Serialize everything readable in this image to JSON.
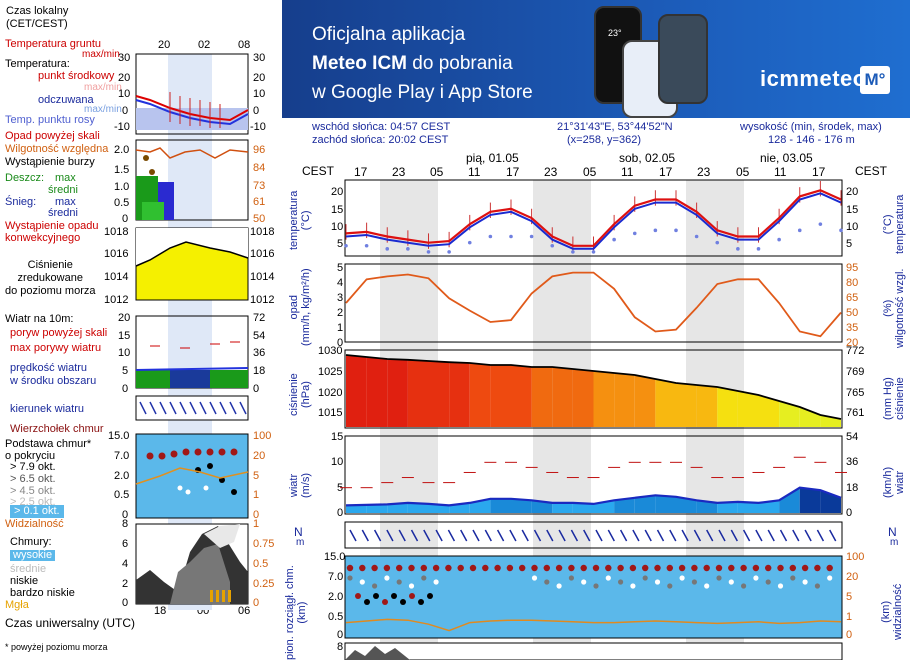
{
  "legend": {
    "time_local_label": "Czas lokalny\n(CET/CEST)",
    "temp_ground": "Temperatura gruntu",
    "temp_ground_sub": "max/min",
    "temperature": "Temperatura:",
    "temp_mid": "punkt środkowy",
    "temp_mid_sub": "max/min",
    "temp_feel": "odczuwana",
    "temp_feel_sub": "max/min",
    "dew_point": "Temp. punktu rosy",
    "precip_above": "Opad powyżej skali",
    "humidity": "Wilgotność względna",
    "storm": "Wystąpienie burzy",
    "rain_label": "Deszcz:",
    "max": "max",
    "mid": "średni",
    "snow_label": "Śnieg:",
    "convective": "Wystąpienie opadu\nkonwekcyjnego",
    "pressure": "Ciśnienie\nzredukowane\ndo poziomu morza",
    "wind10": "Wiatr na 10m:",
    "gust_above": "poryw powyżej skali",
    "gust_max": "max porywy wiatru",
    "wind_speed": "prędkość wiatru\nw środku obszaru",
    "wind_dir": "kierunek wiatru",
    "cloud_top": "Wierzchołek chmur",
    "cloud_base": "Podstawa chmur*\no pokryciu",
    "okt": [
      "> 7.9 okt.",
      "> 6.5 okt.",
      "> 4.5 okt.",
      "> 2.5 okt.",
      "> 0.1 okt."
    ],
    "visibility": "Widzialność",
    "clouds": "Chmury:",
    "cl_high": "wysokie",
    "cl_mid": "średnie",
    "cl_low": "niskie",
    "cl_vlow": "bardzo niskie",
    "fog": "Mgła",
    "utc": "Czas uniwersalny (UTC)",
    "footnote": "* powyżej poziomu morza"
  },
  "legend_axes": {
    "local_ticks": [
      "20",
      "02",
      "08"
    ],
    "utc_ticks": [
      "18",
      "00",
      "06"
    ],
    "temp": [
      "30",
      "20",
      "10",
      "0",
      "-10"
    ],
    "precip": [
      "2.0",
      "1.5",
      "1.0",
      "0.5",
      "0"
    ],
    "hum": [
      "96",
      "84",
      "73",
      "61",
      "50"
    ],
    "press": [
      "1018",
      "1016",
      "1014",
      "1012"
    ],
    "wind_ms": [
      "20",
      "15",
      "10",
      "5",
      "0"
    ],
    "wind_kmh": [
      "72",
      "54",
      "36",
      "18",
      "0"
    ],
    "cloudkm": [
      "15.0",
      "7.0",
      "2.0",
      "0.5",
      "0"
    ],
    "vis": [
      "100",
      "20",
      "5",
      "1",
      "0"
    ],
    "cloud_frac": [
      "8",
      "6",
      "4",
      "2",
      "0"
    ],
    "cloud_right": [
      "1",
      "0.75",
      "0.5",
      "0.25",
      "0"
    ]
  },
  "banner": {
    "line1": "Oficjalna aplikacja",
    "line2a": "Meteo ICM",
    "line2b": " do pobrania",
    "line3": "w Google Play i App Store",
    "logo": "icmmeteo",
    "logo_box": "M°",
    "phone_temp": "23°"
  },
  "header": {
    "sunrise": "wschód słońca: 04:57 CEST",
    "sunset": "zachód słońca: 20:02 CEST",
    "coords": "21°31'43\"E, 53°44'52\"N",
    "grid": "(x=258,  y=362)",
    "altitude_label": "wysokość (min, środek, max)",
    "altitude": "128 - 146 - 176 m"
  },
  "time_axis": {
    "tz": "CEST",
    "hours": [
      "17",
      "23",
      "05",
      "11",
      "17",
      "23",
      "05",
      "11",
      "17",
      "23",
      "05",
      "11",
      "17"
    ],
    "days": [
      "pią, 01.05",
      "sob, 02.05",
      "nie, 03.05"
    ]
  },
  "panels": {
    "temp_left": "temperatura\n(°C)",
    "temp_right": "(°C)\ntemperatura",
    "precip_left": "opad\n(mm/h, kg/m²/h)",
    "precip_right": "(%)\nwilgotność wzgl.",
    "press_left": "ciśnienie\n(hPa)",
    "press_right": "(mm Hg)\nciśnienie",
    "wind_left": "wiatr\n(m/s)",
    "wind_right": "(km/h)\nwiatr",
    "cloud_left": "pion. rozciągł. chm.\n(km)",
    "cloud_right": "(km)\nwidzialność",
    "wind_dir_n": "N",
    "wind_dir_m": "m"
  },
  "axes": {
    "temp": [
      "20",
      "15",
      "10",
      "5"
    ],
    "precip": [
      "5",
      "4",
      "3",
      "2",
      "1",
      "0"
    ],
    "hum": [
      "95",
      "80",
      "65",
      "50",
      "35",
      "20"
    ],
    "press_hpa": [
      "1030",
      "1025",
      "1020",
      "1015"
    ],
    "press_mmhg": [
      "772",
      "769",
      "765",
      "761"
    ],
    "wind_ms": [
      "15",
      "10",
      "5",
      "0"
    ],
    "wind_kmh": [
      "54",
      "36",
      "18",
      "0"
    ],
    "cloud_km": [
      "15.0",
      "7.0",
      "2.0",
      "0.5",
      "0"
    ],
    "vis_km": [
      "100",
      "20",
      "5",
      "1",
      "0"
    ],
    "bottom_tick": "8"
  },
  "chart_data": {
    "type": "line",
    "x": [
      0,
      3,
      6,
      9,
      12,
      15,
      18,
      21,
      24,
      27,
      30,
      33,
      36,
      39,
      42,
      45,
      48,
      51,
      54,
      57,
      60,
      63,
      66,
      69,
      72
    ],
    "series": [
      {
        "values": [
          7,
          7.5,
          6,
          5,
          4,
          4.5,
          10,
          14,
          15,
          12,
          6,
          3,
          3,
          10,
          16,
          18,
          18,
          14,
          8,
          6,
          6,
          12,
          19,
          21,
          18
        ],
        "color": "#dd1111"
      },
      {
        "values": [
          6,
          6.5,
          5,
          4,
          3,
          3.5,
          9,
          13,
          14,
          11,
          5,
          2,
          2,
          9,
          15,
          17,
          17,
          13,
          7,
          5,
          5,
          11,
          18,
          20,
          17
        ],
        "color": "#1a2ad0"
      },
      {
        "values": [
          3,
          3,
          2,
          2,
          1,
          1,
          4,
          6,
          6,
          6,
          3,
          1,
          1,
          5,
          7,
          8,
          8,
          6,
          4,
          2,
          2,
          5,
          8,
          10,
          8
        ],
        "color": "#7080e0"
      },
      {
        "values": [
          60,
          85,
          88,
          90,
          86,
          65,
          52,
          40,
          42,
          70,
          88,
          92,
          92,
          75,
          45,
          30,
          32,
          55,
          80,
          85,
          85,
          60,
          30,
          25,
          50
        ],
        "color": "#e05a1a"
      },
      {
        "values": [
          1030,
          1029.5,
          1029,
          1028.8,
          1028.5,
          1028.2,
          1028,
          1027.5,
          1027.5,
          1027,
          1027,
          1026.5,
          1026,
          1025.5,
          1025,
          1024,
          1023,
          1022.5,
          1022,
          1021,
          1020,
          1018.5,
          1017,
          1015,
          1014
        ],
        "color": "#000000"
      },
      {
        "values": [
          1.5,
          1.6,
          1.7,
          2.0,
          1.8,
          1.5,
          2.0,
          2.8,
          2.8,
          2.5,
          2.0,
          2.0,
          1.8,
          2.5,
          3.0,
          3.5,
          3.2,
          2.5,
          2.0,
          2.2,
          2.0,
          2.5,
          5.0,
          4.5,
          3.0
        ],
        "color": "#1a2ac0"
      },
      {
        "values": [
          5,
          5,
          6,
          7,
          6,
          6,
          8,
          10,
          10,
          9,
          8,
          7,
          7,
          9,
          10,
          10,
          10,
          9,
          7,
          7,
          8,
          9,
          11,
          10,
          8
        ],
        "color": "#c01010"
      }
    ],
    "yticks": [
      "20",
      "15",
      "10",
      "5"
    ]
  }
}
